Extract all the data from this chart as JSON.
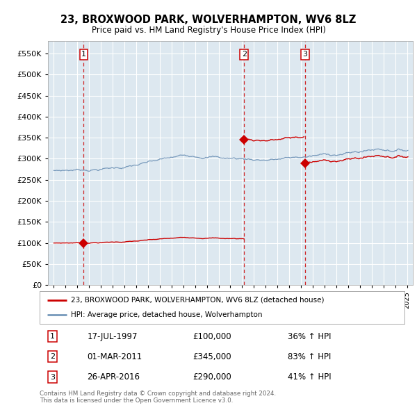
{
  "title": "23, BROXWOOD PARK, WOLVERHAMPTON, WV6 8LZ",
  "subtitle": "Price paid vs. HM Land Registry's House Price Index (HPI)",
  "red_line_label": "23, BROXWOOD PARK, WOLVERHAMPTON, WV6 8LZ (detached house)",
  "blue_line_label": "HPI: Average price, detached house, Wolverhampton",
  "sale_points": [
    {
      "num": 1,
      "date": "17-JUL-1997",
      "price": 100000,
      "pct": "36%",
      "dir": "↑",
      "x": 1997.54
    },
    {
      "num": 2,
      "date": "01-MAR-2011",
      "price": 345000,
      "pct": "83%",
      "dir": "↑",
      "x": 2011.17
    },
    {
      "num": 3,
      "date": "26-APR-2016",
      "price": 290000,
      "pct": "41%",
      "dir": "↑",
      "x": 2016.33
    }
  ],
  "ylim": [
    0,
    580000
  ],
  "yticks": [
    0,
    50000,
    100000,
    150000,
    200000,
    250000,
    300000,
    350000,
    400000,
    450000,
    500000,
    550000
  ],
  "xlim": [
    1994.5,
    2025.5
  ],
  "footnote1": "Contains HM Land Registry data © Crown copyright and database right 2024.",
  "footnote2": "This data is licensed under the Open Government Licence v3.0.",
  "red_color": "#cc0000",
  "blue_color": "#7799bb",
  "bg_color": "#dde8f0",
  "grid_color": "#ffffff",
  "dashed_color": "#cc0000"
}
